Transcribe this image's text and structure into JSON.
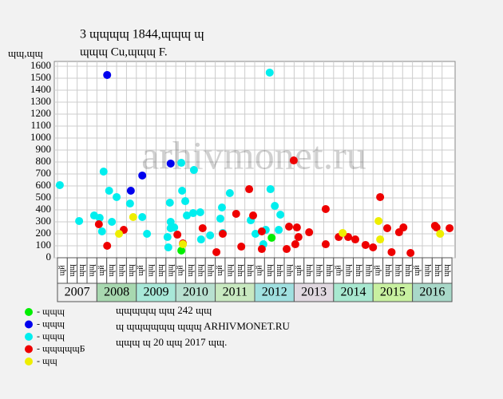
{
  "chart_data": {
    "type": "scatter",
    "title": "3 ɰɰɰɰ 1844,ɰɰɰ ɰ",
    "subtitle": "ɰɰɰ Cu,ɰɰɰ F.",
    "y_label": "ɰɰ,ɰɰ",
    "watermark": "arhivmonet.ru",
    "xlim": [
      2006.92,
      2017.08
    ],
    "ylim": [
      0,
      1600
    ],
    "yticks": [
      0,
      100,
      200,
      300,
      400,
      500,
      600,
      700,
      800,
      900,
      1000,
      1100,
      1200,
      1300,
      1400,
      1500,
      1600
    ],
    "grid": true,
    "years": [
      2007,
      2008,
      2009,
      2010,
      2011,
      2012,
      2013,
      2014,
      2015,
      2016
    ],
    "year_colors": [
      "#eeeeee",
      "#a8d8b0",
      "#a8e8d8",
      "#b8e0d0",
      "#c8e8c0",
      "#a0e0e0",
      "#e0d8e0",
      "#a8e8d0",
      "#c8f0a0",
      "#a8d8c8"
    ],
    "quarter_labels": [
      "ɰй",
      "ɰɰ",
      "ɰɰ",
      "ɰɰ"
    ],
    "series": [
      {
        "name": "- ɰɰɰ",
        "color": "#00ee00",
        "x": [
          2010.14,
          2012.43
        ],
        "values": [
          60,
          167
        ]
      },
      {
        "name": "- ɰɰɰ",
        "color": "#0000ee",
        "x": [
          2008.26,
          2008.86,
          2009.15,
          2009.87
        ],
        "values": [
          1527,
          560,
          687,
          787
        ]
      },
      {
        "name": "- ɰɰɰ",
        "color": "#00eeee",
        "x": [
          2007.06,
          2007.55,
          2007.93,
          2008.07,
          2008.17,
          2008.31,
          2008.13,
          2008.38,
          2008.5,
          2008.84,
          2009.15,
          2009.27,
          2009.79,
          2009.81,
          2009.85,
          2009.87,
          2009.87,
          2009.96,
          2010.14,
          2010.16,
          2010.24,
          2010.28,
          2010.44,
          2010.46,
          2010.62,
          2010.64,
          2010.87,
          2011.13,
          2011.17,
          2011.19,
          2011.37,
          2011.9,
          2012.02,
          2012.22,
          2012.28,
          2012.38,
          2012.4,
          2012.51,
          2012.61,
          2012.65
        ],
        "values": [
          607,
          307,
          353,
          333,
          720,
          560,
          220,
          300,
          507,
          453,
          340,
          200,
          173,
          87,
          460,
          300,
          247,
          253,
          793,
          560,
          473,
          353,
          373,
          733,
          380,
          153,
          187,
          327,
          420,
          207,
          540,
          313,
          200,
          113,
          233,
          1547,
          573,
          433,
          233,
          360
        ]
      },
      {
        "name": "- ɰɰɰɰɰБ",
        "color": "#ee0000",
        "x": [
          2008.05,
          2008.26,
          2008.68,
          2010.04,
          2010.18,
          2010.68,
          2011.03,
          2011.19,
          2011.53,
          2011.66,
          2011.86,
          2011.96,
          2012.18,
          2012.18,
          2012.81,
          2012.87,
          2012.99,
          2013.03,
          2013.07,
          2013.11,
          2013.38,
          2013.8,
          2013.8,
          2014.13,
          2014.37,
          2014.55,
          2014.81,
          2015.0,
          2015.18,
          2015.36,
          2015.47,
          2015.66,
          2015.77,
          2015.95,
          2016.57,
          2016.61,
          2016.94
        ],
        "values": [
          280,
          100,
          233,
          193,
          120,
          247,
          47,
          200,
          367,
          93,
          573,
          353,
          220,
          73,
          73,
          260,
          813,
          113,
          253,
          173,
          213,
          407,
          113,
          173,
          173,
          153,
          107,
          87,
          507,
          247,
          47,
          213,
          253,
          40,
          267,
          253,
          247
        ]
      },
      {
        "name": "- ɰɰ",
        "color": "#eeee00",
        "x": [
          2008.56,
          2008.92,
          2010.18,
          2014.23,
          2015.14,
          2015.18,
          2016.7
        ],
        "values": [
          200,
          340,
          113,
          207,
          307,
          153,
          200
        ]
      }
    ],
    "notes": [
      "ɰɰɰɰɰ ɰɰ 242 ɰɰ",
      "ɰ ɰɰɰɰɰɰ ɰɰɰ ARHIVMONET.RU",
      "ɰɰɰ ɰ 20 ɰɰ 2017 ɰɰ."
    ]
  }
}
